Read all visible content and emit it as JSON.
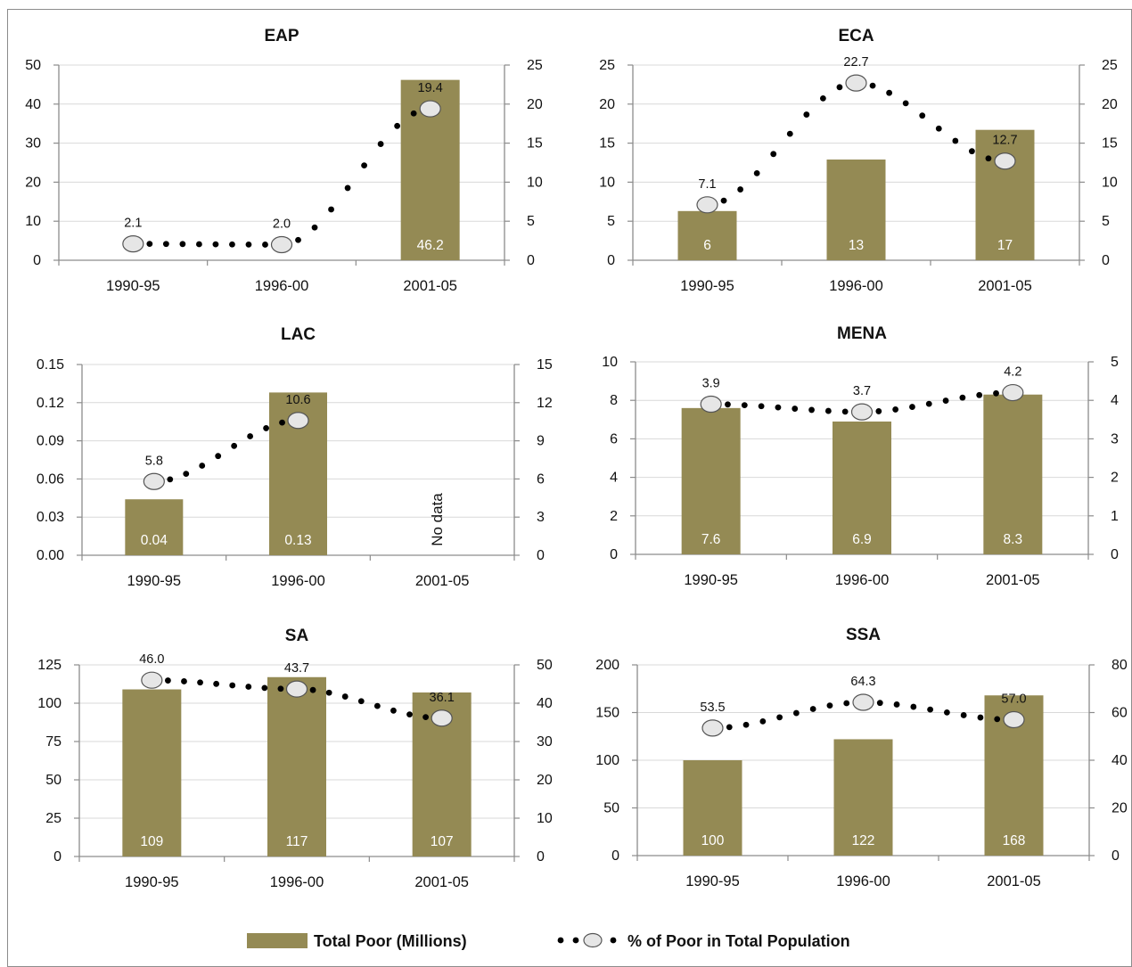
{
  "legend": {
    "bar_label": "Total Poor (Millions)",
    "line_label": "% of Poor in Total Population"
  },
  "colors": {
    "bar": "#948a54",
    "dot": "#000000",
    "marker_fill": "#e6e6e6",
    "marker_stroke": "#555555",
    "grid": "#d9d9d9",
    "axis": "#8c8c8c"
  },
  "chart_data": [
    {
      "type": "bar",
      "title": "EAP",
      "categories": [
        "1990-95",
        "1996-00",
        "2001-05"
      ],
      "y_ticks": [
        "0",
        "10",
        "20",
        "30",
        "40",
        "50"
      ],
      "y2_ticks": [
        "0",
        "5",
        "10",
        "15",
        "20",
        "25"
      ],
      "ylim": [
        0,
        50
      ],
      "y2lim": [
        0,
        25
      ],
      "series": [
        {
          "name": "Total Poor (Millions)",
          "values": [
            null,
            null,
            46.2
          ],
          "labels": [
            "",
            "",
            "46.2"
          ]
        },
        {
          "name": "% of Poor in Total Population",
          "values": [
            2.1,
            2.0,
            19.4
          ],
          "labels": [
            "2.1",
            "2.0",
            "19.4"
          ]
        }
      ]
    },
    {
      "type": "bar",
      "title": "ECA",
      "categories": [
        "1990-95",
        "1996-00",
        "2001-05"
      ],
      "y_ticks": [
        "0",
        "5",
        "10",
        "15",
        "20",
        "25"
      ],
      "y2_ticks": [
        "0",
        "5",
        "10",
        "15",
        "20",
        "25"
      ],
      "ylim": [
        0,
        25
      ],
      "y2lim": [
        0,
        25
      ],
      "series": [
        {
          "name": "Total Poor (Millions)",
          "values": [
            6.3,
            12.9,
            16.7
          ],
          "labels": [
            "6",
            "13",
            "17"
          ]
        },
        {
          "name": "% of Poor in Total Population",
          "values": [
            7.1,
            22.7,
            12.7
          ],
          "labels": [
            "7.1",
            "22.7",
            "12.7"
          ]
        }
      ]
    },
    {
      "type": "bar",
      "title": "LAC",
      "categories": [
        "1990-95",
        "1996-00",
        "2001-05"
      ],
      "y_ticks": [
        "0.00",
        "0.03",
        "0.06",
        "0.09",
        "0.12",
        "0.15"
      ],
      "y2_ticks": [
        "0",
        "3",
        "6",
        "9",
        "12",
        "15"
      ],
      "ylim": [
        0,
        0.15
      ],
      "y2lim": [
        0,
        15
      ],
      "annotation": "No data",
      "series": [
        {
          "name": "Total Poor (Millions)",
          "values": [
            0.044,
            0.128,
            null
          ],
          "labels": [
            "0.04",
            "0.13",
            ""
          ]
        },
        {
          "name": "% of Poor in Total Population",
          "values": [
            5.8,
            10.6,
            null
          ],
          "labels": [
            "5.8",
            "10.6",
            ""
          ]
        }
      ]
    },
    {
      "type": "bar",
      "title": "MENA",
      "categories": [
        "1990-95",
        "1996-00",
        "2001-05"
      ],
      "y_ticks": [
        "0",
        "2",
        "4",
        "6",
        "8",
        "10"
      ],
      "y2_ticks": [
        "0",
        "1",
        "2",
        "3",
        "4",
        "5"
      ],
      "ylim": [
        0,
        10
      ],
      "y2lim": [
        0,
        5
      ],
      "series": [
        {
          "name": "Total Poor (Millions)",
          "values": [
            7.6,
            6.9,
            8.3
          ],
          "labels": [
            "7.6",
            "6.9",
            "8.3"
          ]
        },
        {
          "name": "% of Poor in Total Population",
          "values": [
            3.9,
            3.7,
            4.2
          ],
          "labels": [
            "3.9",
            "3.7",
            "4.2"
          ]
        }
      ]
    },
    {
      "type": "bar",
      "title": "SA",
      "categories": [
        "1990-95",
        "1996-00",
        "2001-05"
      ],
      "y_ticks": [
        "0",
        "25",
        "50",
        "75",
        "100",
        "125"
      ],
      "y2_ticks": [
        "0",
        "10",
        "20",
        "30",
        "40",
        "50"
      ],
      "ylim": [
        0,
        125
      ],
      "y2lim": [
        0,
        50
      ],
      "series": [
        {
          "name": "Total Poor (Millions)",
          "values": [
            109,
            117,
            107
          ],
          "labels": [
            "109",
            "117",
            "107"
          ]
        },
        {
          "name": "% of Poor in Total Population",
          "values": [
            46.0,
            43.7,
            36.1
          ],
          "labels": [
            "46.0",
            "43.7",
            "36.1"
          ]
        }
      ]
    },
    {
      "type": "bar",
      "title": "SSA",
      "categories": [
        "1990-95",
        "1996-00",
        "2001-05"
      ],
      "y_ticks": [
        "0",
        "50",
        "100",
        "150",
        "200"
      ],
      "y2_ticks": [
        "0",
        "20",
        "40",
        "60",
        "80"
      ],
      "ylim": [
        0,
        200
      ],
      "y2lim": [
        0,
        80
      ],
      "series": [
        {
          "name": "Total Poor (Millions)",
          "values": [
            100,
            122,
            168
          ],
          "labels": [
            "100",
            "122",
            "168"
          ]
        },
        {
          "name": "% of Poor in Total Population",
          "values": [
            53.5,
            64.3,
            57.0
          ],
          "labels": [
            "53.5",
            "64.3",
            "57.0"
          ]
        }
      ]
    }
  ]
}
